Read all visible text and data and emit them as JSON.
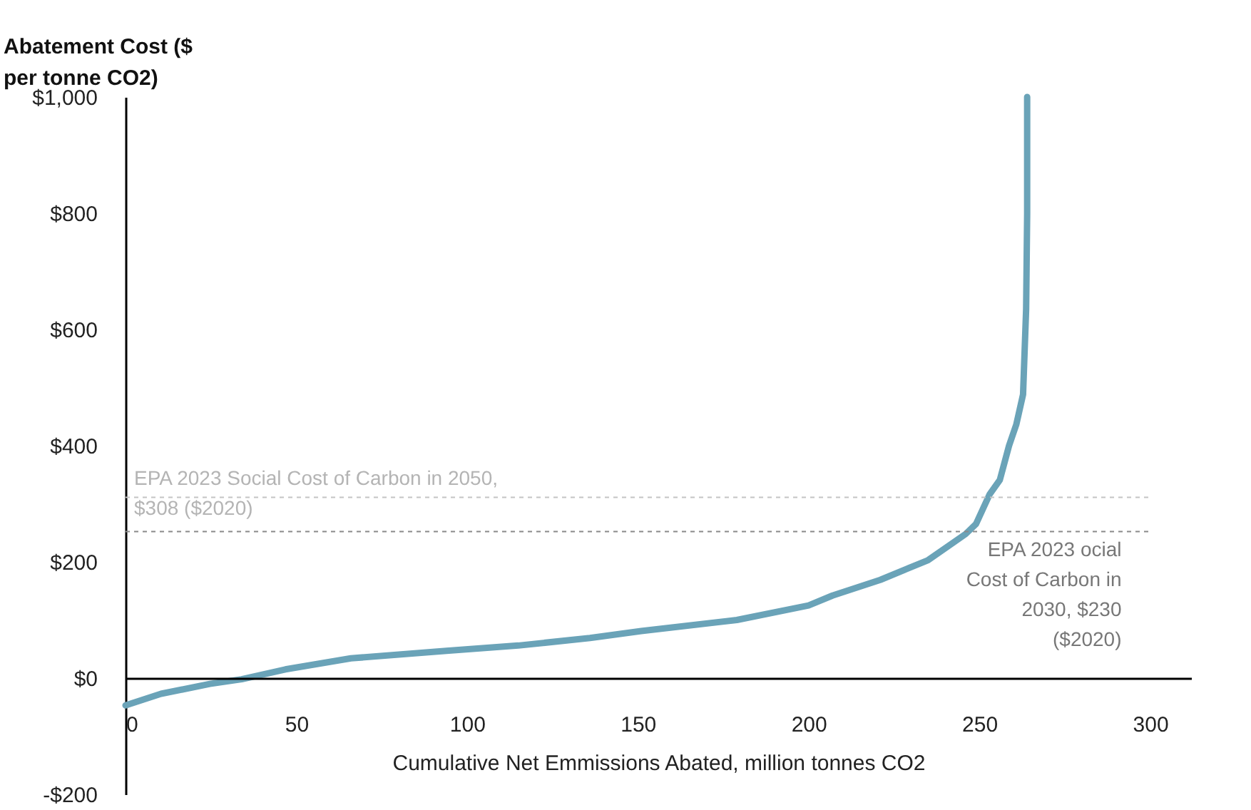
{
  "chart_data": {
    "type": "line",
    "xlabel": "Cumulative Net Emmissions Abated, million tonnes CO2",
    "ylabel": "Abatement Cost ($ per tonne CO2)",
    "x": [
      0,
      10.4,
      24.7,
      34,
      46.8,
      66,
      94,
      115,
      136,
      151,
      179,
      200,
      207,
      221,
      235,
      246,
      249,
      253,
      256,
      258.7,
      260.8,
      262.8,
      263.7,
      264,
      264
    ],
    "series": [
      {
        "color": "#6aa3b8",
        "values": [
          -47,
          -27,
          -10,
          -2,
          15,
          34,
          47,
          56,
          69,
          81,
          100,
          125,
          142,
          169,
          203,
          248,
          265,
          316,
          341,
          400,
          436,
          488,
          635,
          799,
          1000
        ]
      }
    ],
    "xlim": [
      0,
      312
    ],
    "xticks": [
      0,
      50,
      100,
      150,
      200,
      250,
      300
    ],
    "ylim": [
      -200,
      1000
    ],
    "yticks": [
      {
        "value": -200,
        "label": "-$200"
      },
      {
        "value": 0,
        "label": "$0"
      },
      {
        "value": 200,
        "label": "$200"
      },
      {
        "value": 400,
        "label": "$400"
      },
      {
        "value": 600,
        "label": "$600"
      },
      {
        "value": 800,
        "label": "$800"
      },
      {
        "value": 1000,
        "label": "$1,000"
      }
    ],
    "ref_lines": [
      {
        "axis": "y",
        "value": 311,
        "label": "EPA 2023 Social Cost of Carbon in 2050, $308 ($2020)",
        "color": "#c4c4c4",
        "line_style": "dashed"
      },
      {
        "axis": "y",
        "value": 252,
        "label": "EPA 2023 ocial Cost of Carbon in 2030, $230 ($2020)",
        "color": "#8a8a8a",
        "line_style": "dashed"
      }
    ],
    "grid": false,
    "marker": "none",
    "line_style": "solid"
  }
}
